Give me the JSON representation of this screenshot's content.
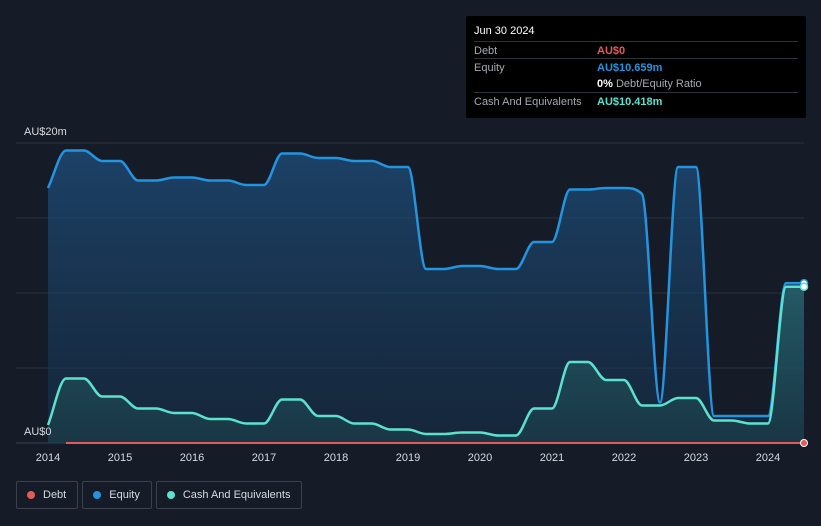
{
  "tooltip": {
    "date": "Jun 30 2024",
    "debt_label": "Debt",
    "debt_value": "AU$0",
    "equity_label": "Equity",
    "equity_value": "AU$10.659m",
    "ratio_pct": "0%",
    "ratio_label": "Debt/Equity Ratio",
    "cash_label": "Cash And Equivalents",
    "cash_value": "AU$10.418m"
  },
  "legend": {
    "debt": "Debt",
    "equity": "Equity",
    "cash": "Cash And Equivalents"
  },
  "colors": {
    "background": "#151b27",
    "debt": "#e25a5a",
    "equity": "#2394df",
    "cash": "#5ce1d0"
  },
  "chart_data": {
    "type": "area",
    "y_tick_labels": [
      "AU$20m",
      "AU$0"
    ],
    "ylim": [
      0,
      20
    ],
    "xlim": [
      2014,
      2024.5
    ],
    "x_ticks": [
      2014,
      2015,
      2016,
      2017,
      2018,
      2019,
      2020,
      2021,
      2022,
      2023,
      2024
    ],
    "grid": true,
    "legend_position": "bottom-left",
    "series": [
      {
        "name": "Equity",
        "x": [
          2014.0,
          2014.25,
          2014.5,
          2014.75,
          2015.0,
          2015.25,
          2015.5,
          2015.75,
          2016.0,
          2016.25,
          2016.5,
          2016.75,
          2017.0,
          2017.25,
          2017.5,
          2017.75,
          2018.0,
          2018.25,
          2018.5,
          2018.75,
          2019.0,
          2019.25,
          2019.5,
          2019.75,
          2020.0,
          2020.25,
          2020.5,
          2020.75,
          2021.0,
          2021.25,
          2021.5,
          2021.75,
          2022.0,
          2022.25,
          2022.5,
          2022.75,
          2023.0,
          2023.25,
          2023.5,
          2023.75,
          2024.0,
          2024.25,
          2024.5
        ],
        "values": [
          17.0,
          19.5,
          19.5,
          18.8,
          18.8,
          17.5,
          17.5,
          17.7,
          17.7,
          17.5,
          17.5,
          17.2,
          17.2,
          19.3,
          19.3,
          19.0,
          19.0,
          18.8,
          18.8,
          18.4,
          18.4,
          11.6,
          11.6,
          11.8,
          11.8,
          11.6,
          11.6,
          13.4,
          13.4,
          16.9,
          16.9,
          17.0,
          17.0,
          16.6,
          2.7,
          18.4,
          18.4,
          1.8,
          1.8,
          1.8,
          1.8,
          10.66,
          10.66
        ]
      },
      {
        "name": "Cash And Equivalents",
        "x": [
          2014.0,
          2014.25,
          2014.5,
          2014.75,
          2015.0,
          2015.25,
          2015.5,
          2015.75,
          2016.0,
          2016.25,
          2016.5,
          2016.75,
          2017.0,
          2017.25,
          2017.5,
          2017.75,
          2018.0,
          2018.25,
          2018.5,
          2018.75,
          2019.0,
          2019.25,
          2019.5,
          2019.75,
          2020.0,
          2020.25,
          2020.5,
          2020.75,
          2021.0,
          2021.25,
          2021.5,
          2021.75,
          2022.0,
          2022.25,
          2022.5,
          2022.75,
          2023.0,
          2023.25,
          2023.5,
          2023.75,
          2024.0,
          2024.25,
          2024.5
        ],
        "values": [
          1.2,
          4.3,
          4.3,
          3.1,
          3.1,
          2.3,
          2.3,
          2.0,
          2.0,
          1.6,
          1.6,
          1.3,
          1.3,
          2.9,
          2.9,
          1.8,
          1.8,
          1.3,
          1.3,
          0.9,
          0.9,
          0.6,
          0.6,
          0.7,
          0.7,
          0.5,
          0.5,
          2.3,
          2.3,
          5.4,
          5.4,
          4.2,
          4.2,
          2.5,
          2.5,
          3.0,
          3.0,
          1.5,
          1.5,
          1.3,
          1.3,
          10.42,
          10.42
        ]
      },
      {
        "name": "Debt",
        "x": [
          2014.25,
          2024.5
        ],
        "values": [
          0,
          0
        ]
      }
    ]
  }
}
